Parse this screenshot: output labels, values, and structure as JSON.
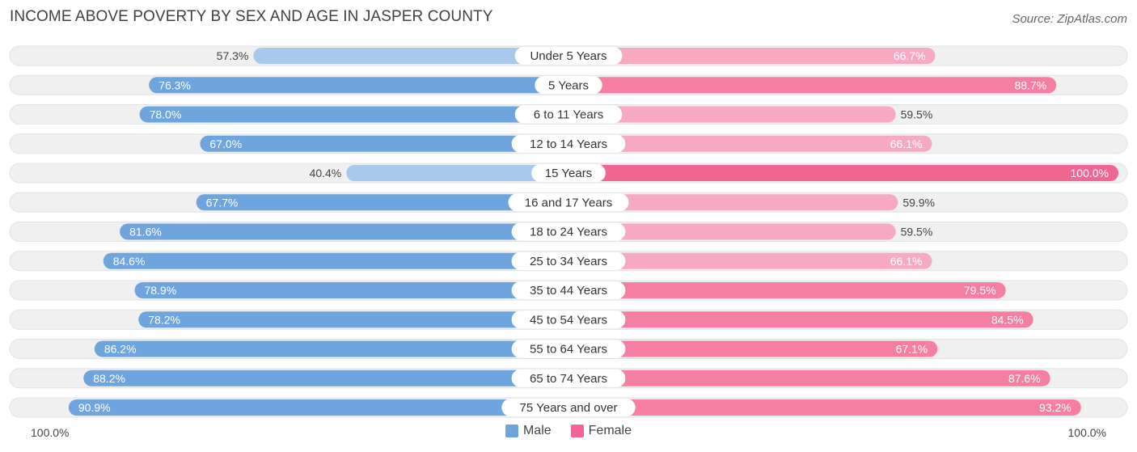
{
  "title": "INCOME ABOVE POVERTY BY SEX AND AGE IN JASPER COUNTY",
  "source": "Source: ZipAtlas.com",
  "colors": {
    "male_dark": "#6fa5de",
    "male_light": "#a9c9ec",
    "female_dark": "#f47fa3",
    "female_light": "#f7a9c2",
    "female_max": "#f06692",
    "row_bg": "#f0f0f0"
  },
  "chart_data": {
    "type": "bar",
    "orientation": "horizontal-diverging",
    "title": "INCOME ABOVE POVERTY BY SEX AND AGE IN JASPER COUNTY",
    "categories": [
      "Under 5 Years",
      "5 Years",
      "6 to 11 Years",
      "12 to 14 Years",
      "15 Years",
      "16 and 17 Years",
      "18 to 24 Years",
      "25 to 34 Years",
      "35 to 44 Years",
      "45 to 54 Years",
      "55 to 64 Years",
      "65 to 74 Years",
      "75 Years and over"
    ],
    "series": [
      {
        "name": "Male",
        "values": [
          57.3,
          76.3,
          78.0,
          67.0,
          40.4,
          67.7,
          81.6,
          84.6,
          78.9,
          78.2,
          86.2,
          88.2,
          90.9
        ],
        "labels": [
          "57.3%",
          "76.3%",
          "78.0%",
          "67.0%",
          "40.4%",
          "67.7%",
          "81.6%",
          "84.6%",
          "78.9%",
          "78.2%",
          "86.2%",
          "88.2%",
          "90.9%"
        ]
      },
      {
        "name": "Female",
        "values": [
          66.7,
          88.7,
          59.5,
          66.1,
          100.0,
          59.9,
          59.5,
          66.1,
          79.5,
          84.5,
          67.1,
          87.6,
          93.2
        ],
        "labels": [
          "66.7%",
          "88.7%",
          "59.5%",
          "66.1%",
          "100.0%",
          "59.9%",
          "59.5%",
          "66.1%",
          "79.5%",
          "84.5%",
          "67.1%",
          "87.6%",
          "93.2%"
        ]
      }
    ],
    "xlim": [
      0,
      100
    ],
    "axis_left_label": "100.0%",
    "axis_right_label": "100.0%",
    "legend": [
      "Male",
      "Female"
    ]
  }
}
